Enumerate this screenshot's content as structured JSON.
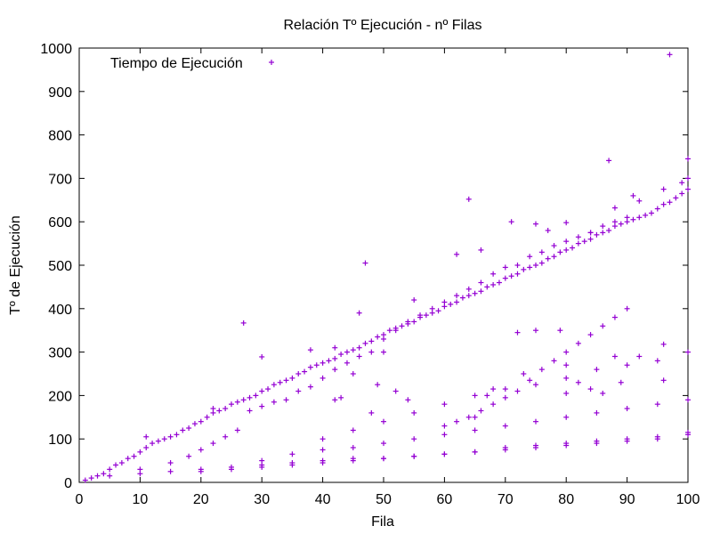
{
  "chart_data": {
    "type": "scatter",
    "title": "Relación Tº Ejecución - nº Filas",
    "xlabel": "Fila",
    "ylabel": "Tº de Ejecución",
    "xlim": [
      0,
      100
    ],
    "ylim": [
      0,
      1000
    ],
    "x_ticks": [
      "0",
      "10",
      "20",
      "30",
      "40",
      "50",
      "60",
      "70",
      "80",
      "90",
      "100"
    ],
    "y_ticks": [
      "0",
      "100",
      "200",
      "300",
      "400",
      "500",
      "600",
      "700",
      "800",
      "900",
      "1000"
    ],
    "grid": false,
    "legend_position": "top-left",
    "marker": "plus",
    "colors": {
      "series": "#9400D3",
      "axes": "#000000"
    },
    "series": [
      {
        "name": "Tiempo de Ejecución",
        "points": [
          [
            1,
            5
          ],
          [
            2,
            10
          ],
          [
            3,
            15
          ],
          [
            4,
            20
          ],
          [
            5,
            30
          ],
          [
            6,
            40
          ],
          [
            7,
            45
          ],
          [
            8,
            55
          ],
          [
            9,
            60
          ],
          [
            10,
            70
          ],
          [
            11,
            80
          ],
          [
            12,
            90
          ],
          [
            13,
            95
          ],
          [
            14,
            100
          ],
          [
            15,
            105
          ],
          [
            16,
            110
          ],
          [
            17,
            120
          ],
          [
            18,
            125
          ],
          [
            19,
            135
          ],
          [
            20,
            140
          ],
          [
            21,
            150
          ],
          [
            22,
            160
          ],
          [
            23,
            165
          ],
          [
            24,
            170
          ],
          [
            25,
            180
          ],
          [
            26,
            185
          ],
          [
            27,
            190
          ],
          [
            28,
            195
          ],
          [
            29,
            200
          ],
          [
            30,
            210
          ],
          [
            31,
            215
          ],
          [
            32,
            225
          ],
          [
            33,
            230
          ],
          [
            34,
            235
          ],
          [
            35,
            240
          ],
          [
            36,
            250
          ],
          [
            37,
            255
          ],
          [
            38,
            265
          ],
          [
            39,
            270
          ],
          [
            40,
            275
          ],
          [
            41,
            280
          ],
          [
            42,
            285
          ],
          [
            43,
            295
          ],
          [
            44,
            300
          ],
          [
            45,
            305
          ],
          [
            46,
            310
          ],
          [
            47,
            320
          ],
          [
            48,
            325
          ],
          [
            49,
            335
          ],
          [
            50,
            340
          ],
          [
            51,
            350
          ],
          [
            52,
            355
          ],
          [
            53,
            360
          ],
          [
            54,
            365
          ],
          [
            55,
            370
          ],
          [
            56,
            380
          ],
          [
            57,
            385
          ],
          [
            58,
            390
          ],
          [
            59,
            395
          ],
          [
            60,
            405
          ],
          [
            61,
            410
          ],
          [
            62,
            415
          ],
          [
            63,
            425
          ],
          [
            64,
            430
          ],
          [
            65,
            435
          ],
          [
            66,
            440
          ],
          [
            67,
            450
          ],
          [
            68,
            455
          ],
          [
            69,
            460
          ],
          [
            70,
            470
          ],
          [
            71,
            475
          ],
          [
            72,
            480
          ],
          [
            73,
            490
          ],
          [
            74,
            495
          ],
          [
            75,
            500
          ],
          [
            76,
            505
          ],
          [
            77,
            515
          ],
          [
            78,
            520
          ],
          [
            79,
            530
          ],
          [
            80,
            535
          ],
          [
            81,
            540
          ],
          [
            82,
            550
          ],
          [
            83,
            555
          ],
          [
            84,
            560
          ],
          [
            85,
            570
          ],
          [
            86,
            575
          ],
          [
            87,
            580
          ],
          [
            88,
            590
          ],
          [
            89,
            595
          ],
          [
            90,
            600
          ],
          [
            91,
            605
          ],
          [
            92,
            610
          ],
          [
            93,
            615
          ],
          [
            94,
            620
          ],
          [
            95,
            630
          ],
          [
            96,
            640
          ],
          [
            97,
            645
          ],
          [
            98,
            655
          ],
          [
            99,
            665
          ],
          [
            100,
            675
          ],
          [
            5,
            15
          ],
          [
            10,
            30
          ],
          [
            15,
            45
          ],
          [
            18,
            60
          ],
          [
            20,
            75
          ],
          [
            22,
            90
          ],
          [
            24,
            105
          ],
          [
            26,
            120
          ],
          [
            28,
            165
          ],
          [
            30,
            175
          ],
          [
            32,
            185
          ],
          [
            34,
            190
          ],
          [
            36,
            210
          ],
          [
            38,
            220
          ],
          [
            40,
            240
          ],
          [
            42,
            260
          ],
          [
            44,
            275
          ],
          [
            46,
            290
          ],
          [
            48,
            300
          ],
          [
            50,
            330
          ],
          [
            52,
            350
          ],
          [
            54,
            370
          ],
          [
            56,
            385
          ],
          [
            58,
            400
          ],
          [
            60,
            415
          ],
          [
            62,
            430
          ],
          [
            64,
            445
          ],
          [
            66,
            460
          ],
          [
            68,
            480
          ],
          [
            70,
            495
          ],
          [
            72,
            500
          ],
          [
            74,
            520
          ],
          [
            76,
            530
          ],
          [
            78,
            545
          ],
          [
            80,
            555
          ],
          [
            82,
            565
          ],
          [
            84,
            575
          ],
          [
            86,
            590
          ],
          [
            88,
            600
          ],
          [
            90,
            610
          ],
          [
            10,
            20
          ],
          [
            15,
            25
          ],
          [
            20,
            30
          ],
          [
            25,
            35
          ],
          [
            30,
            40
          ],
          [
            35,
            45
          ],
          [
            40,
            50
          ],
          [
            45,
            55
          ],
          [
            50,
            55
          ],
          [
            55,
            60
          ],
          [
            60,
            65
          ],
          [
            65,
            70
          ],
          [
            70,
            75
          ],
          [
            75,
            80
          ],
          [
            80,
            85
          ],
          [
            85,
            90
          ],
          [
            90,
            95
          ],
          [
            95,
            100
          ],
          [
            100,
            110
          ],
          [
            20,
            25
          ],
          [
            25,
            30
          ],
          [
            30,
            35
          ],
          [
            35,
            40
          ],
          [
            40,
            45
          ],
          [
            45,
            50
          ],
          [
            50,
            55
          ],
          [
            55,
            60
          ],
          [
            60,
            65
          ],
          [
            65,
            70
          ],
          [
            70,
            80
          ],
          [
            75,
            85
          ],
          [
            80,
            90
          ],
          [
            85,
            95
          ],
          [
            90,
            100
          ],
          [
            95,
            105
          ],
          [
            100,
            115
          ],
          [
            30,
            50
          ],
          [
            35,
            65
          ],
          [
            40,
            75
          ],
          [
            45,
            80
          ],
          [
            50,
            90
          ],
          [
            55,
            100
          ],
          [
            60,
            110
          ],
          [
            65,
            120
          ],
          [
            70,
            130
          ],
          [
            75,
            140
          ],
          [
            80,
            150
          ],
          [
            85,
            160
          ],
          [
            90,
            170
          ],
          [
            95,
            180
          ],
          [
            100,
            190
          ],
          [
            40,
            100
          ],
          [
            45,
            120
          ],
          [
            50,
            140
          ],
          [
            55,
            160
          ],
          [
            60,
            180
          ],
          [
            65,
            200
          ],
          [
            70,
            215
          ],
          [
            75,
            225
          ],
          [
            80,
            240
          ],
          [
            85,
            260
          ],
          [
            90,
            270
          ],
          [
            95,
            280
          ],
          [
            100,
            300
          ],
          [
            60,
            130
          ],
          [
            62,
            140
          ],
          [
            64,
            150
          ],
          [
            66,
            165
          ],
          [
            68,
            180
          ],
          [
            70,
            195
          ],
          [
            72,
            210
          ],
          [
            74,
            235
          ],
          [
            76,
            260
          ],
          [
            78,
            280
          ],
          [
            80,
            300
          ],
          [
            82,
            320
          ],
          [
            84,
            340
          ],
          [
            86,
            360
          ],
          [
            88,
            380
          ],
          [
            90,
            400
          ],
          [
            27,
            367
          ],
          [
            30,
            289
          ],
          [
            38,
            305
          ],
          [
            47,
            505
          ],
          [
            49,
            225
          ],
          [
            50,
            300
          ],
          [
            62,
            525
          ],
          [
            64,
            652
          ],
          [
            71,
            600
          ],
          [
            72,
            345
          ],
          [
            75,
            350
          ],
          [
            80,
            270
          ],
          [
            84,
            215
          ],
          [
            87,
            741
          ],
          [
            88,
            290
          ],
          [
            91,
            660
          ],
          [
            96,
            318
          ],
          [
            97,
            985
          ],
          [
            100,
            745
          ],
          [
            11,
            105
          ],
          [
            22,
            170
          ],
          [
            42,
            310
          ],
          [
            45,
            250
          ],
          [
            46,
            390
          ],
          [
            55,
            420
          ],
          [
            66,
            535
          ],
          [
            75,
            595
          ],
          [
            77,
            580
          ],
          [
            80,
            598
          ],
          [
            84,
            575
          ],
          [
            88,
            632
          ],
          [
            92,
            648
          ],
          [
            96,
            675
          ],
          [
            99,
            690
          ],
          [
            100,
            700
          ],
          [
            42,
            190
          ],
          [
            43,
            195
          ],
          [
            48,
            160
          ],
          [
            52,
            210
          ],
          [
            54,
            190
          ],
          [
            65,
            150
          ],
          [
            67,
            200
          ],
          [
            68,
            215
          ],
          [
            73,
            250
          ],
          [
            79,
            350
          ],
          [
            80,
            205
          ],
          [
            82,
            230
          ],
          [
            86,
            205
          ],
          [
            89,
            230
          ],
          [
            92,
            290
          ],
          [
            96,
            235
          ]
        ]
      }
    ]
  }
}
